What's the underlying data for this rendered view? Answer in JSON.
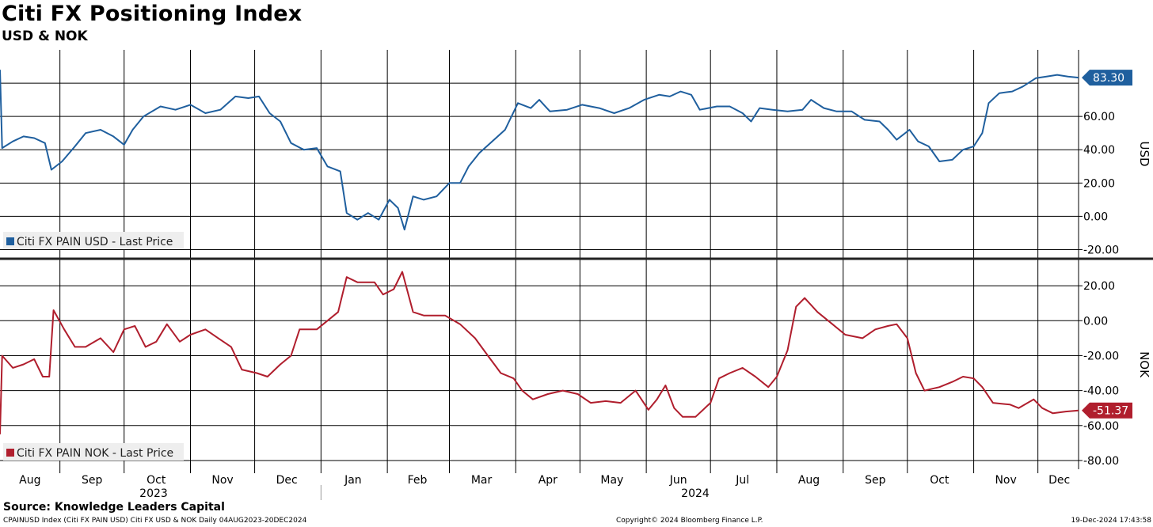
{
  "title": "Citi FX Positioning Index",
  "subtitle": "USD & NOK",
  "source": "Source: Knowledge Leaders Capital",
  "footer": {
    "left": "CPAINUSD Index (Citi FX PAIN USD) Citi FX USD & NOK  Daily 04AUG2023-20DEC2024",
    "center": "Copyright© 2024 Bloomberg Finance L.P.",
    "right": "19-Dec-2024 17:43:58"
  },
  "colors": {
    "usd": "#1f5f9e",
    "nok": "#b01e2d",
    "grid": "#000000"
  },
  "chart_data": [
    {
      "type": "line",
      "name": "Citi FX PAIN USD - Last Price",
      "axis_label": "USD",
      "ylim": [
        -25,
        100
      ],
      "yticks": [
        "-20.00",
        "0.00",
        "20.00",
        "40.00",
        "60.00"
      ],
      "last_value": "83.30",
      "x_range": [
        "2023-08-04",
        "2024-12-20"
      ],
      "points": [
        [
          "2023-08-04",
          88
        ],
        [
          "2023-08-05",
          41
        ],
        [
          "2023-08-10",
          45
        ],
        [
          "2023-08-15",
          48
        ],
        [
          "2023-08-20",
          47
        ],
        [
          "2023-08-25",
          44
        ],
        [
          "2023-08-28",
          28
        ],
        [
          "2023-09-02",
          33
        ],
        [
          "2023-09-08",
          42
        ],
        [
          "2023-09-13",
          50
        ],
        [
          "2023-09-20",
          52
        ],
        [
          "2023-09-26",
          48
        ],
        [
          "2023-10-01",
          43
        ],
        [
          "2023-10-05",
          52
        ],
        [
          "2023-10-10",
          60
        ],
        [
          "2023-10-18",
          66
        ],
        [
          "2023-10-25",
          64
        ],
        [
          "2023-11-01",
          67
        ],
        [
          "2023-11-08",
          62
        ],
        [
          "2023-11-15",
          64
        ],
        [
          "2023-11-22",
          72
        ],
        [
          "2023-11-28",
          71
        ],
        [
          "2023-12-03",
          72
        ],
        [
          "2023-12-08",
          62
        ],
        [
          "2023-12-13",
          57
        ],
        [
          "2023-12-18",
          44
        ],
        [
          "2023-12-24",
          40
        ],
        [
          "2023-12-30",
          41
        ],
        [
          "2024-01-04",
          30
        ],
        [
          "2024-01-10",
          27
        ],
        [
          "2024-01-13",
          2
        ],
        [
          "2024-01-18",
          -2
        ],
        [
          "2024-01-23",
          2
        ],
        [
          "2024-01-28",
          -2
        ],
        [
          "2024-02-02",
          10
        ],
        [
          "2024-02-06",
          5
        ],
        [
          "2024-02-09",
          -8
        ],
        [
          "2024-02-13",
          12
        ],
        [
          "2024-02-18",
          10
        ],
        [
          "2024-02-24",
          12
        ],
        [
          "2024-03-01",
          20
        ],
        [
          "2024-03-06",
          20
        ],
        [
          "2024-03-10",
          30
        ],
        [
          "2024-03-15",
          38
        ],
        [
          "2024-03-21",
          45
        ],
        [
          "2024-03-27",
          52
        ],
        [
          "2024-04-02",
          68
        ],
        [
          "2024-04-08",
          65
        ],
        [
          "2024-04-12",
          70
        ],
        [
          "2024-04-17",
          63
        ],
        [
          "2024-04-25",
          64
        ],
        [
          "2024-05-02",
          67
        ],
        [
          "2024-05-10",
          65
        ],
        [
          "2024-05-17",
          62
        ],
        [
          "2024-05-24",
          65
        ],
        [
          "2024-05-31",
          70
        ],
        [
          "2024-06-07",
          73
        ],
        [
          "2024-06-12",
          72
        ],
        [
          "2024-06-17",
          75
        ],
        [
          "2024-06-22",
          73
        ],
        [
          "2024-06-26",
          64
        ],
        [
          "2024-07-04",
          66
        ],
        [
          "2024-07-10",
          66
        ],
        [
          "2024-07-16",
          62
        ],
        [
          "2024-07-20",
          57
        ],
        [
          "2024-07-24",
          65
        ],
        [
          "2024-07-30",
          64
        ],
        [
          "2024-08-06",
          63
        ],
        [
          "2024-08-13",
          64
        ],
        [
          "2024-08-17",
          70
        ],
        [
          "2024-08-23",
          65
        ],
        [
          "2024-08-29",
          63
        ],
        [
          "2024-09-05",
          63
        ],
        [
          "2024-09-11",
          58
        ],
        [
          "2024-09-18",
          57
        ],
        [
          "2024-09-22",
          52
        ],
        [
          "2024-09-26",
          46
        ],
        [
          "2024-10-02",
          52
        ],
        [
          "2024-10-06",
          45
        ],
        [
          "2024-10-11",
          42
        ],
        [
          "2024-10-16",
          33
        ],
        [
          "2024-10-22",
          34
        ],
        [
          "2024-10-27",
          40
        ],
        [
          "2024-11-01",
          42
        ],
        [
          "2024-11-05",
          50
        ],
        [
          "2024-11-08",
          68
        ],
        [
          "2024-11-13",
          74
        ],
        [
          "2024-11-19",
          75
        ],
        [
          "2024-11-24",
          78
        ],
        [
          "2024-11-30",
          83
        ],
        [
          "2024-12-05",
          84
        ],
        [
          "2024-12-10",
          85
        ],
        [
          "2024-12-15",
          84
        ],
        [
          "2024-12-20",
          83.3
        ]
      ]
    },
    {
      "type": "line",
      "name": "Citi FX PAIN NOK - Last Price",
      "axis_label": "NOK",
      "ylim": [
        -85,
        35
      ],
      "yticks": [
        "-80.00",
        "-60.00",
        "-40.00",
        "-20.00",
        "0.00",
        "20.00"
      ],
      "last_value": "-51.37",
      "x_range": [
        "2023-08-04",
        "2024-12-20"
      ],
      "points": [
        [
          "2023-08-04",
          -65
        ],
        [
          "2023-08-05",
          -20
        ],
        [
          "2023-08-10",
          -27
        ],
        [
          "2023-08-15",
          -25
        ],
        [
          "2023-08-20",
          -22
        ],
        [
          "2023-08-24",
          -32
        ],
        [
          "2023-08-27",
          -32
        ],
        [
          "2023-08-29",
          6
        ],
        [
          "2023-09-03",
          -5
        ],
        [
          "2023-09-08",
          -15
        ],
        [
          "2023-09-13",
          -15
        ],
        [
          "2023-09-20",
          -10
        ],
        [
          "2023-09-26",
          -18
        ],
        [
          "2023-10-01",
          -5
        ],
        [
          "2023-10-06",
          -3
        ],
        [
          "2023-10-11",
          -15
        ],
        [
          "2023-10-16",
          -12
        ],
        [
          "2023-10-21",
          -2
        ],
        [
          "2023-10-27",
          -12
        ],
        [
          "2023-11-01",
          -8
        ],
        [
          "2023-11-08",
          -5
        ],
        [
          "2023-11-14",
          -10
        ],
        [
          "2023-11-20",
          -15
        ],
        [
          "2023-11-25",
          -28
        ],
        [
          "2023-12-02",
          -30
        ],
        [
          "2023-12-07",
          -32
        ],
        [
          "2023-12-13",
          -25
        ],
        [
          "2023-12-18",
          -20
        ],
        [
          "2023-12-22",
          -5
        ],
        [
          "2023-12-30",
          -5
        ],
        [
          "2024-01-04",
          0
        ],
        [
          "2024-01-09",
          5
        ],
        [
          "2024-01-13",
          25
        ],
        [
          "2024-01-18",
          22
        ],
        [
          "2024-01-26",
          22
        ],
        [
          "2024-01-30",
          15
        ],
        [
          "2024-02-04",
          18
        ],
        [
          "2024-02-08",
          28
        ],
        [
          "2024-02-13",
          5
        ],
        [
          "2024-02-18",
          3
        ],
        [
          "2024-02-28",
          3
        ],
        [
          "2024-03-06",
          -2
        ],
        [
          "2024-03-13",
          -10
        ],
        [
          "2024-03-19",
          -20
        ],
        [
          "2024-03-25",
          -30
        ],
        [
          "2024-03-31",
          -33
        ],
        [
          "2024-04-04",
          -40
        ],
        [
          "2024-04-09",
          -45
        ],
        [
          "2024-04-16",
          -42
        ],
        [
          "2024-04-23",
          -40
        ],
        [
          "2024-04-30",
          -42
        ],
        [
          "2024-05-06",
          -47
        ],
        [
          "2024-05-13",
          -46
        ],
        [
          "2024-05-20",
          -47
        ],
        [
          "2024-05-27",
          -40
        ],
        [
          "2024-06-02",
          -51
        ],
        [
          "2024-06-06",
          -45
        ],
        [
          "2024-06-10",
          -37
        ],
        [
          "2024-06-14",
          -50
        ],
        [
          "2024-06-18",
          -55
        ],
        [
          "2024-06-24",
          -55
        ],
        [
          "2024-07-01",
          -47
        ],
        [
          "2024-07-05",
          -33
        ],
        [
          "2024-07-10",
          -30
        ],
        [
          "2024-07-16",
          -27
        ],
        [
          "2024-07-22",
          -32
        ],
        [
          "2024-07-28",
          -38
        ],
        [
          "2024-08-01",
          -32
        ],
        [
          "2024-08-06",
          -17
        ],
        [
          "2024-08-10",
          8
        ],
        [
          "2024-08-14",
          13
        ],
        [
          "2024-08-20",
          5
        ],
        [
          "2024-08-27",
          -2
        ],
        [
          "2024-09-02",
          -8
        ],
        [
          "2024-09-10",
          -10
        ],
        [
          "2024-09-16",
          -5
        ],
        [
          "2024-09-22",
          -3
        ],
        [
          "2024-09-26",
          -2
        ],
        [
          "2024-10-01",
          -10
        ],
        [
          "2024-10-05",
          -30
        ],
        [
          "2024-10-09",
          -40
        ],
        [
          "2024-10-16",
          -38
        ],
        [
          "2024-10-22",
          -35
        ],
        [
          "2024-10-27",
          -32
        ],
        [
          "2024-11-01",
          -33
        ],
        [
          "2024-11-05",
          -38
        ],
        [
          "2024-11-10",
          -47
        ],
        [
          "2024-11-18",
          -48
        ],
        [
          "2024-11-22",
          -50
        ],
        [
          "2024-11-29",
          -45
        ],
        [
          "2024-12-03",
          -50
        ],
        [
          "2024-12-08",
          -53
        ],
        [
          "2024-12-14",
          -52
        ],
        [
          "2024-12-20",
          -51.37
        ]
      ]
    }
  ],
  "x_axis": {
    "months": [
      "Aug",
      "Sep",
      "Oct",
      "Nov",
      "Dec",
      "Jan",
      "Feb",
      "Mar",
      "Apr",
      "May",
      "Jun",
      "Jul",
      "Aug",
      "Sep",
      "Oct",
      "Nov",
      "Dec"
    ],
    "years": [
      "2023",
      "2024"
    ]
  }
}
